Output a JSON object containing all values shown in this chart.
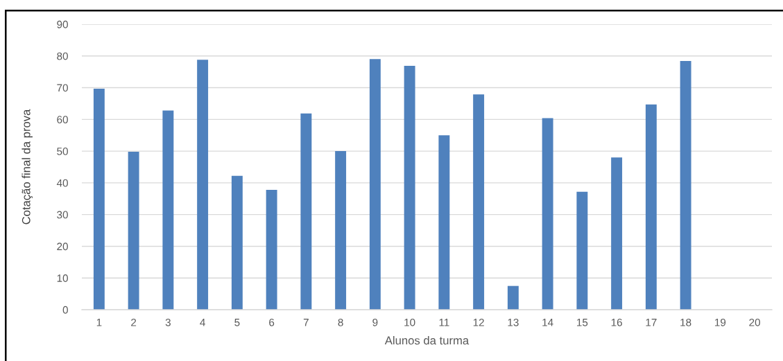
{
  "chart_data": {
    "type": "bar",
    "xlabel": "Alunos da turma",
    "ylabel": "Cotação final da prova",
    "categories": [
      "1",
      "2",
      "3",
      "4",
      "5",
      "6",
      "7",
      "8",
      "9",
      "10",
      "11",
      "12",
      "13",
      "14",
      "15",
      "16",
      "17",
      "18",
      "19",
      "20"
    ],
    "values": [
      69.7,
      49.8,
      62.8,
      78.8,
      42.2,
      37.8,
      61.9,
      50,
      79,
      76.9,
      55,
      67.9,
      7.5,
      60.4,
      37.2,
      48,
      64.7,
      78.4,
      null,
      null
    ],
    "color": "#4f81bd",
    "ylim": [
      0,
      90
    ],
    "yticks": [
      0,
      10,
      20,
      30,
      40,
      50,
      60,
      70,
      80,
      90
    ],
    "grid": "y"
  }
}
